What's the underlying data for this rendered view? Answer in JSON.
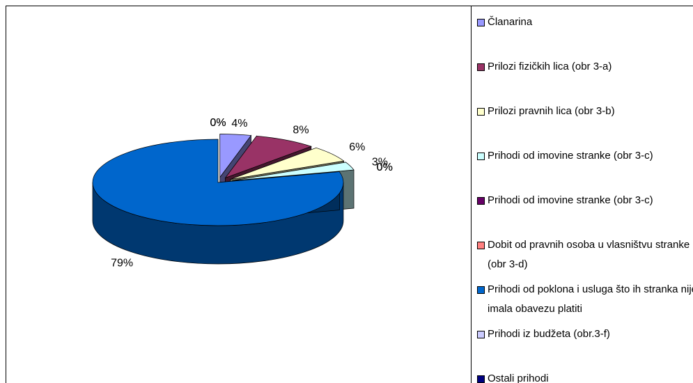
{
  "chart_data": {
    "type": "pie",
    "categories": [
      "Članarina",
      "Prilozi fizičkih lica (obr 3-a)",
      "Prilozi pravnih lica (obr 3-b)",
      "Prihodi od imovine stranke (obr 3-c)",
      "Prihodi od imovine stranke (obr 3-c)",
      "Dobit od pravnih osoba u vlasništvu stranke (obr 3-d)",
      "Prihodi od poklona i usluga što ih stranka nije imala obavezu platiti",
      "Prihodi iz budžeta (obr.3-f)",
      "Ostali prihodi"
    ],
    "values": [
      4,
      8,
      6,
      3,
      0,
      0,
      79,
      0,
      0
    ],
    "value_labels": [
      "4%",
      "8%",
      "6%",
      "3%",
      "0%",
      "0%",
      "79%",
      "0%",
      "0%"
    ],
    "colors": [
      "#9999ff",
      "#993366",
      "#ffffcc",
      "#ccffff",
      "#660066",
      "#ff8080",
      "#0066cc",
      "#ccccff",
      "#000080"
    ]
  }
}
